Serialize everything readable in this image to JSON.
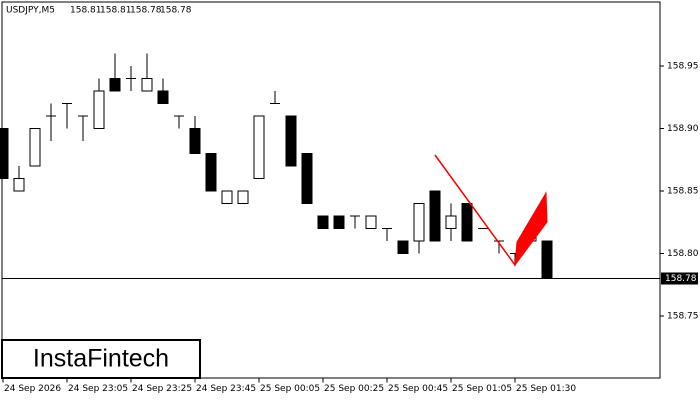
{
  "chart_data": {
    "type": "candlestick",
    "title": "USDJPY,M5",
    "header_quote": [
      158.81,
      158.81,
      158.78,
      158.78
    ],
    "brand": "InstaFintech",
    "categories": [
      "24 Sep 2026",
      null,
      null,
      null,
      "24 Sep 23:05",
      null,
      null,
      null,
      "24 Sep 23:25",
      null,
      null,
      null,
      "24 Sep 23:45",
      null,
      null,
      null,
      "25 Sep 00:05",
      null,
      null,
      null,
      "25 Sep 00:25",
      null,
      null,
      null,
      "25 Sep 00:45",
      null,
      null,
      null,
      "25 Sep 01:05",
      null,
      null,
      null,
      "25 Sep 01:30",
      null,
      null
    ],
    "open": [
      158.9,
      158.85,
      158.87,
      158.91,
      158.92,
      158.91,
      158.9,
      158.94,
      158.94,
      158.93,
      158.93,
      158.91,
      158.9,
      158.88,
      158.84,
      158.84,
      158.86,
      158.92,
      158.91,
      158.88,
      158.83,
      158.83,
      158.83,
      158.82,
      158.82,
      158.81,
      158.81,
      158.85,
      158.82,
      158.84,
      158.82,
      158.81,
      158.8,
      158.81,
      158.81
    ],
    "high": [
      158.9,
      158.87,
      158.9,
      158.92,
      158.92,
      158.91,
      158.94,
      158.96,
      158.95,
      158.96,
      158.94,
      158.91,
      158.91,
      158.88,
      158.85,
      158.85,
      158.91,
      158.93,
      158.91,
      158.88,
      158.83,
      158.83,
      158.83,
      158.83,
      158.82,
      158.81,
      158.84,
      158.85,
      158.84,
      158.84,
      158.82,
      158.81,
      158.8,
      158.82,
      158.81
    ],
    "low": [
      158.86,
      158.85,
      158.87,
      158.89,
      158.9,
      158.89,
      158.9,
      158.93,
      158.93,
      158.93,
      158.92,
      158.9,
      158.88,
      158.85,
      158.84,
      158.84,
      158.86,
      158.92,
      158.87,
      158.84,
      158.82,
      158.82,
      158.82,
      158.82,
      158.81,
      158.8,
      158.8,
      158.81,
      158.81,
      158.81,
      158.82,
      158.8,
      158.79,
      158.81,
      158.78
    ],
    "close": [
      158.86,
      158.86,
      158.9,
      158.91,
      158.92,
      158.91,
      158.93,
      158.93,
      158.94,
      158.94,
      158.92,
      158.91,
      158.88,
      158.85,
      158.85,
      158.85,
      158.91,
      158.92,
      158.87,
      158.84,
      158.82,
      158.82,
      158.83,
      158.83,
      158.82,
      158.8,
      158.84,
      158.81,
      158.83,
      158.81,
      158.82,
      158.81,
      158.8,
      158.82,
      158.78
    ],
    "last_price": 158.78,
    "ylim": [
      158.7,
      159.0
    ],
    "yticks": [
      158.75,
      {
        "value": 158.8,
        "label": "158.80"
      },
      158.85,
      {
        "value": 158.9,
        "label": "158.90"
      },
      158.95
    ],
    "grid": false
  }
}
